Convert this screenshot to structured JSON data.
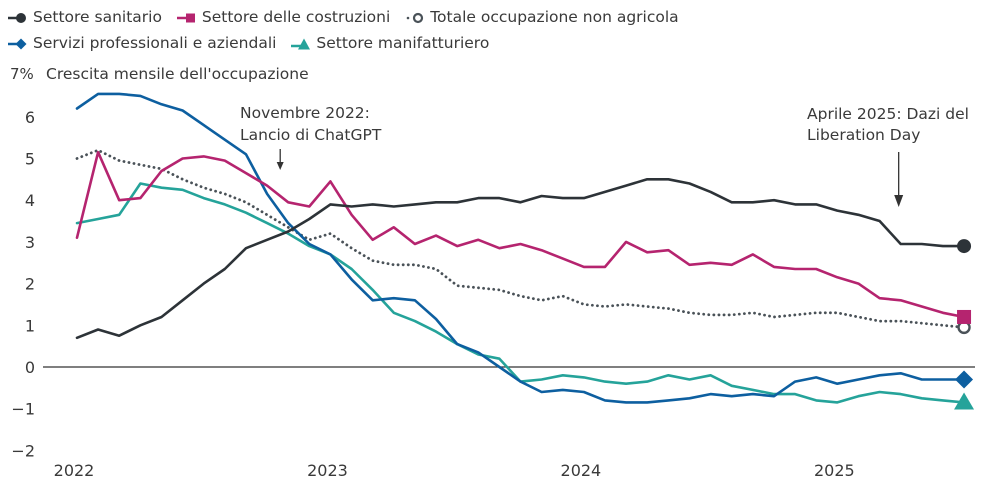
{
  "chart_data": {
    "type": "line",
    "title": "",
    "ylabel": "Crescita mensile dell'occupazione",
    "ylabel_unit_top": "7%",
    "xlabel": "",
    "ylim": [
      -2,
      7
    ],
    "yticks": [
      6,
      5,
      4,
      3,
      2,
      1,
      0,
      -1,
      -2
    ],
    "ytick_labels": [
      "6",
      "5",
      "4",
      "3",
      "2",
      "1",
      "0",
      "−1",
      "−2"
    ],
    "xticks": [
      "2022",
      "2023",
      "2024",
      "2025"
    ],
    "x_start": "2022-01",
    "x_end": "2025-07",
    "x_frequency": "monthly",
    "grid": false,
    "zero_line": true,
    "legend_position": "top",
    "series": [
      {
        "name": "Settore sanitario",
        "color": "#2d3338",
        "style": "solid",
        "end_marker": "circle",
        "values": [
          0.7,
          0.9,
          0.75,
          1.0,
          1.2,
          1.6,
          2.0,
          2.35,
          2.85,
          3.05,
          3.25,
          3.55,
          3.9,
          3.85,
          3.9,
          3.85,
          3.9,
          3.95,
          3.95,
          4.05,
          4.05,
          3.95,
          4.1,
          4.05,
          4.05,
          4.2,
          4.35,
          4.5,
          4.5,
          4.4,
          4.2,
          3.95,
          3.95,
          4.0,
          3.9,
          3.9,
          3.75,
          3.65,
          3.5,
          2.95,
          2.95,
          2.9,
          2.9
        ]
      },
      {
        "name": "Settore delle costruzioni",
        "color": "#b5246f",
        "style": "solid",
        "end_marker": "square",
        "values": [
          3.1,
          5.15,
          4.0,
          4.05,
          4.7,
          5.0,
          5.05,
          4.95,
          4.65,
          4.35,
          3.95,
          3.85,
          4.45,
          3.65,
          3.05,
          3.35,
          2.95,
          3.15,
          2.9,
          3.05,
          2.85,
          2.95,
          2.8,
          2.6,
          2.4,
          2.4,
          3.0,
          2.75,
          2.8,
          2.45,
          2.5,
          2.45,
          2.7,
          2.4,
          2.35,
          2.35,
          2.15,
          2.0,
          1.65,
          1.6,
          1.45,
          1.3,
          1.2
        ]
      },
      {
        "name": "Totale occupazione non agricola",
        "color": "#4a5258",
        "style": "dotted",
        "end_marker": "open-circle",
        "values": [
          5.0,
          5.2,
          4.95,
          4.85,
          4.75,
          4.5,
          4.3,
          4.15,
          3.95,
          3.65,
          3.35,
          3.05,
          3.2,
          2.85,
          2.55,
          2.45,
          2.45,
          2.35,
          1.95,
          1.9,
          1.85,
          1.7,
          1.6,
          1.7,
          1.5,
          1.45,
          1.5,
          1.45,
          1.4,
          1.3,
          1.25,
          1.25,
          1.3,
          1.2,
          1.25,
          1.3,
          1.3,
          1.2,
          1.1,
          1.1,
          1.05,
          1.0,
          0.95
        ]
      },
      {
        "name": "Servizi professionali e aziendali",
        "color": "#0d5fa0",
        "style": "solid",
        "end_marker": "diamond",
        "values": [
          6.2,
          6.55,
          6.55,
          6.5,
          6.3,
          6.15,
          5.8,
          5.45,
          5.1,
          4.15,
          3.45,
          2.95,
          2.7,
          2.1,
          1.6,
          1.65,
          1.6,
          1.15,
          0.55,
          0.35,
          0.0,
          -0.35,
          -0.6,
          -0.55,
          -0.6,
          -0.8,
          -0.85,
          -0.85,
          -0.8,
          -0.75,
          -0.65,
          -0.7,
          -0.65,
          -0.7,
          -0.35,
          -0.25,
          -0.4,
          -0.3,
          -0.2,
          -0.15,
          -0.3,
          -0.3,
          -0.3
        ]
      },
      {
        "name": "Settore manifatturiero",
        "color": "#25a39a",
        "style": "solid",
        "end_marker": "triangle",
        "values": [
          3.45,
          3.55,
          3.65,
          4.4,
          4.3,
          4.25,
          4.05,
          3.9,
          3.7,
          3.45,
          3.2,
          2.9,
          2.7,
          2.35,
          1.85,
          1.3,
          1.1,
          0.85,
          0.55,
          0.3,
          0.2,
          -0.35,
          -0.3,
          -0.2,
          -0.25,
          -0.35,
          -0.4,
          -0.35,
          -0.2,
          -0.3,
          -0.2,
          -0.45,
          -0.55,
          -0.65,
          -0.65,
          -0.8,
          -0.85,
          -0.7,
          -0.6,
          -0.65,
          -0.75,
          -0.8,
          -0.85
        ]
      }
    ],
    "annotations": [
      {
        "text_line1": "Novembre 2022:",
        "text_line2": "Lancio di ChatGPT",
        "month_index": 10
      },
      {
        "text_line1": "Aprile 2025: Dazi del",
        "text_line2": "Liberation Day",
        "month_index": 39
      }
    ]
  }
}
